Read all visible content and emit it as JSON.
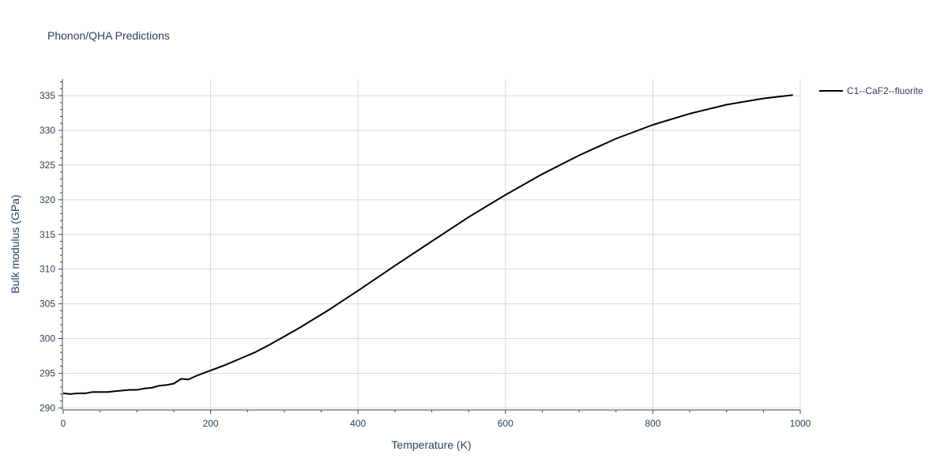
{
  "chart_data": {
    "type": "line",
    "title": "Phonon/QHA Predictions",
    "xlabel": "Temperature (K)",
    "ylabel": "Bulk modulus (GPa)",
    "xlim": [
      0,
      1000
    ],
    "ylim": [
      289.7,
      337.4
    ],
    "x_ticks": [
      0,
      200,
      400,
      600,
      800,
      1000
    ],
    "x_tick_labels": [
      "0",
      "200",
      "400",
      "600",
      "800",
      "1000"
    ],
    "y_ticks": [
      290,
      295,
      300,
      305,
      310,
      315,
      320,
      325,
      330,
      335
    ],
    "y_tick_labels": [
      "290",
      "295",
      "300",
      "305",
      "310",
      "315",
      "320",
      "325",
      "330",
      "335"
    ],
    "grid": true,
    "legend": {
      "position": "top-right",
      "entries": [
        "C1--CaF2--fluorite"
      ]
    },
    "series": [
      {
        "name": "C1--CaF2--fluorite",
        "color": "#000000",
        "x": [
          0,
          10,
          20,
          30,
          40,
          50,
          60,
          70,
          80,
          90,
          100,
          110,
          120,
          130,
          140,
          150,
          160,
          170,
          180,
          200,
          220,
          240,
          260,
          280,
          300,
          320,
          340,
          360,
          380,
          400,
          450,
          500,
          550,
          600,
          650,
          700,
          750,
          800,
          850,
          900,
          950,
          990
        ],
        "y": [
          292.1,
          292.0,
          292.1,
          292.1,
          292.3,
          292.3,
          292.3,
          292.4,
          292.5,
          292.6,
          292.6,
          292.8,
          292.9,
          293.2,
          293.3,
          293.5,
          294.2,
          294.1,
          294.6,
          295.4,
          296.2,
          297.1,
          298.0,
          299.1,
          300.3,
          301.5,
          302.8,
          304.1,
          305.5,
          306.9,
          310.5,
          314.0,
          317.5,
          320.7,
          323.7,
          326.4,
          328.8,
          330.8,
          332.4,
          333.7,
          334.6,
          335.1
        ]
      }
    ]
  }
}
